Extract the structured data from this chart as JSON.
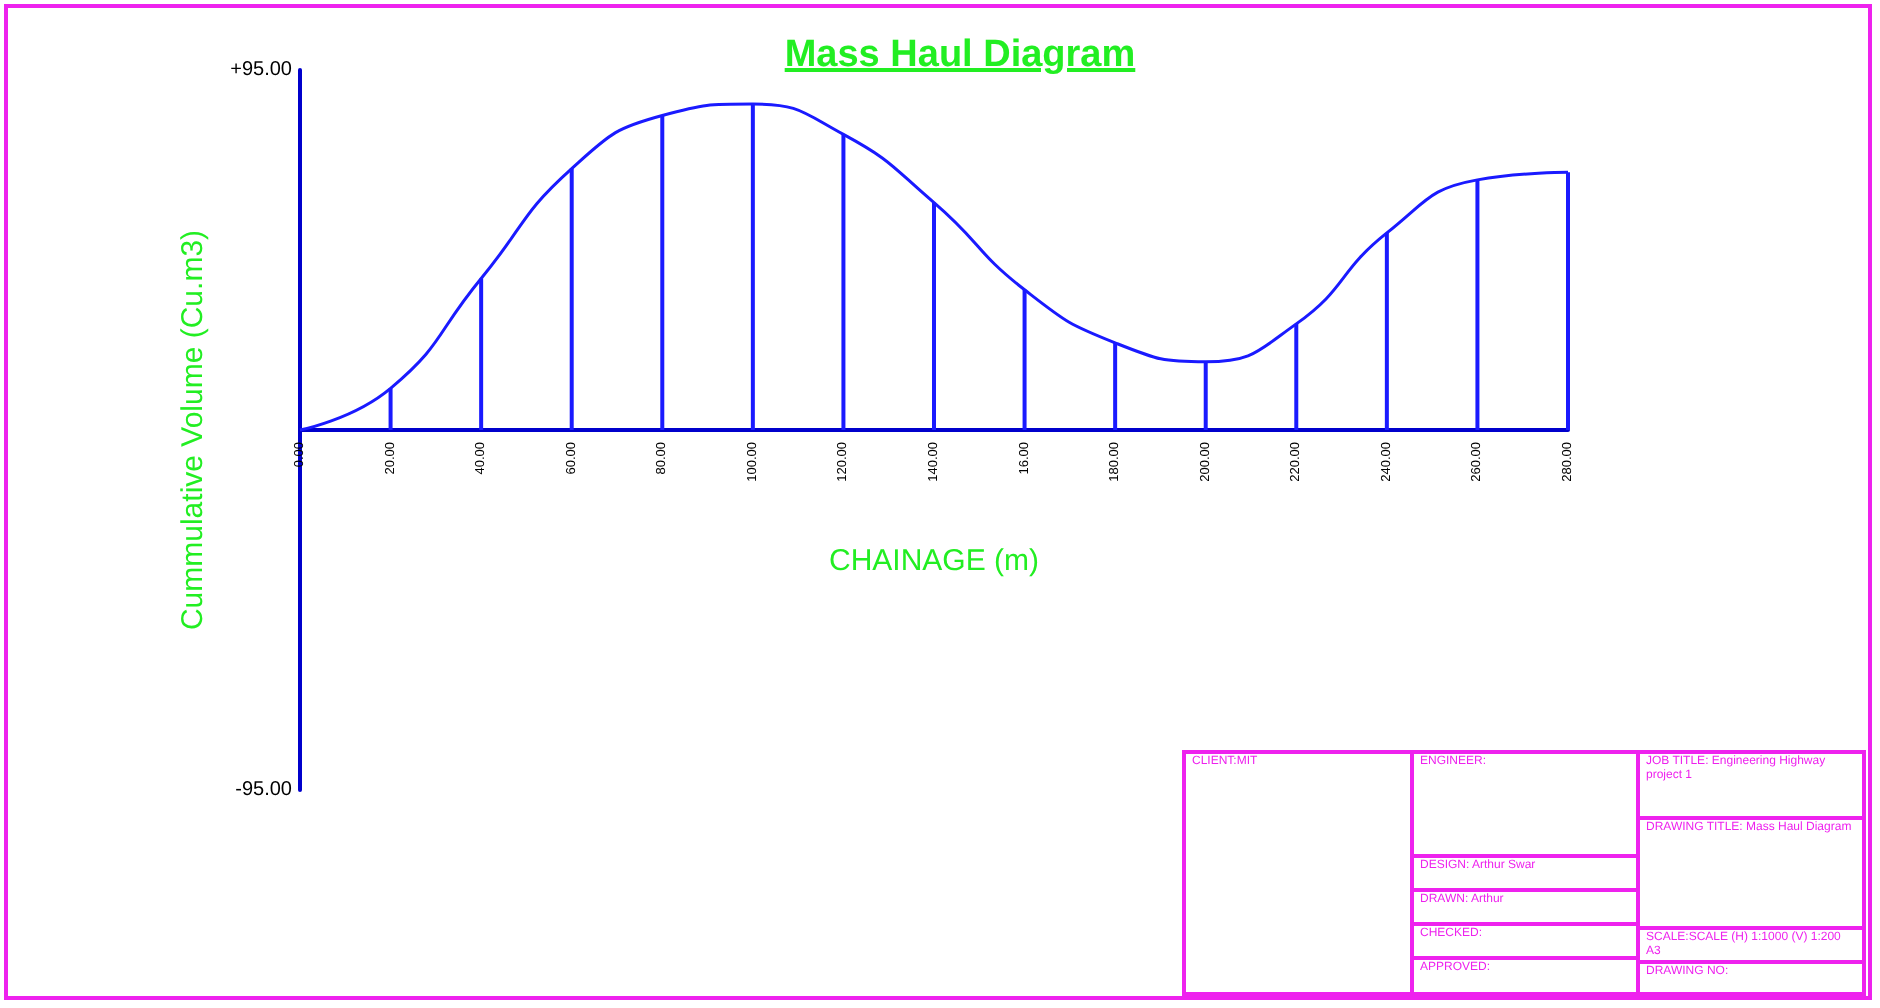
{
  "chart_data": {
    "type": "line",
    "title": "Mass Haul Diagram",
    "xlabel": "CHAINAGE (m)",
    "ylabel": "Cummulative Volume (Cu.m3)",
    "categories": [
      "0.00",
      "20.00",
      "40.00",
      "60.00",
      "80.00",
      "100.00",
      "120.00",
      "140.00",
      "16.00",
      "180.00",
      "200.00",
      "220.00",
      "240.00",
      "260.00",
      "280.00"
    ],
    "ylim": [
      -95,
      95
    ],
    "yticks": [
      {
        "value": 95,
        "label": "+95.00"
      },
      {
        "value": -95,
        "label": "-95.00"
      }
    ],
    "grid": false,
    "marker": "none",
    "line_style": "solid",
    "series": [
      {
        "color": "#1a1aff",
        "values": [
          0,
          11,
          40,
          69,
          83,
          86,
          78,
          60,
          37,
          23,
          18,
          28,
          52,
          66,
          68
        ]
      },
      {
        "type": "bar",
        "color": "#1a1aff",
        "values": [
          null,
          11,
          40,
          69,
          83,
          86,
          78,
          60,
          37,
          23,
          18,
          28,
          52,
          66,
          68
        ]
      }
    ],
    "annotations": [
      "CLIENT:MIT",
      "ENGINEER:",
      "DESIGN: Arthur Swar",
      "DRAWN: Arthur",
      "CHECKED:",
      "APPROVED:",
      "JOB TITLE: Engineering Highway project 1",
      "DRAWING TITLE: Mass Haul Diagram",
      "SCALE:SCALE (H) 1:1000  (V) 1:200 A3",
      "DRAWING NO:"
    ]
  }
}
